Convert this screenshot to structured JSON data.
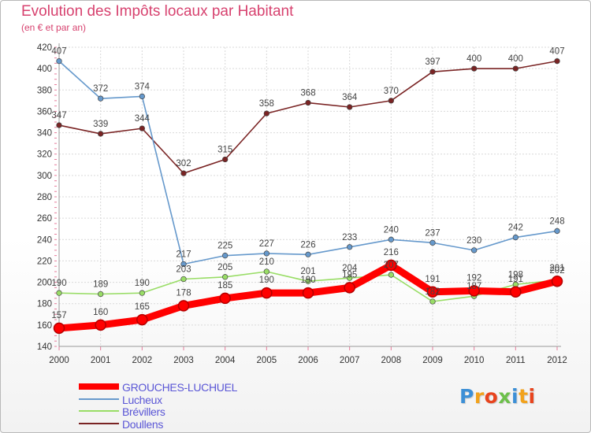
{
  "title": "Evolution des Impôts locaux par Habitant",
  "subtitle": "(en € et par an)",
  "logo": {
    "text": "Proxiti",
    "letter_colors": [
      "#3c8fd6",
      "#f2a21c",
      "#e8441d",
      "#6cc04a",
      "#3c8fd6",
      "#f2a21c",
      "#e8441d"
    ]
  },
  "chart_data": {
    "type": "line",
    "title": "Evolution des Impôts locaux par Habitant",
    "subtitle": "(en € et par an)",
    "x": [
      "2000",
      "2001",
      "2002",
      "2003",
      "2004",
      "2005",
      "2006",
      "2007",
      "2008",
      "2009",
      "2010",
      "2011",
      "2012"
    ],
    "ylim": [
      140,
      420
    ],
    "yticks": [
      140,
      160,
      180,
      200,
      220,
      240,
      260,
      280,
      300,
      320,
      340,
      360,
      380,
      400,
      420
    ],
    "grid": true,
    "legend_position": "bottom-left",
    "series": [
      {
        "name": "Doullens",
        "color": "#7a2424",
        "values": [
          347,
          339,
          344,
          302,
          315,
          358,
          368,
          364,
          370,
          397,
          400,
          400,
          407
        ],
        "labels": [
          "347",
          "339",
          "344",
          "302",
          "315",
          "358",
          "368",
          "364",
          "370",
          "397",
          "400",
          "400",
          "407"
        ]
      },
      {
        "name": "Lucheux",
        "color": "#6699cc",
        "values": [
          407,
          372,
          374,
          217,
          225,
          227,
          226,
          233,
          240,
          237,
          230,
          242,
          248
        ],
        "labels": [
          "407",
          "372",
          "374",
          "217",
          "225",
          "227",
          "226",
          "233",
          "240",
          "237",
          "230",
          "242",
          "248"
        ]
      },
      {
        "name": "Brévillers",
        "color": "#99dd66",
        "values": [
          190,
          189,
          190,
          203,
          205,
          210,
          201,
          204,
          207,
          182,
          187,
          198,
          202
        ],
        "labels": [
          "190",
          "189",
          "190",
          "203",
          "205",
          "210",
          "201",
          "204",
          "207",
          "182",
          "187",
          "198",
          "202"
        ]
      },
      {
        "name": "GROUCHES-LUCHUEL",
        "color": "#ff0000",
        "values": [
          157,
          160,
          165,
          178,
          185,
          190,
          190,
          195,
          216,
          191,
          192,
          191,
          201
        ],
        "labels": [
          "157",
          "160",
          "165",
          "178",
          "185",
          "190",
          "190",
          "195",
          "216",
          "191",
          "192",
          "191",
          "201"
        ]
      }
    ]
  },
  "legend": [
    {
      "label": "GROUCHES-LUCHUEL",
      "color": "#ff0000",
      "thickness": 8
    },
    {
      "label": "Lucheux",
      "color": "#6699cc",
      "thickness": 2
    },
    {
      "label": "Brévillers",
      "color": "#99dd66",
      "thickness": 2
    },
    {
      "label": "Doullens",
      "color": "#7a2424",
      "thickness": 2
    }
  ]
}
